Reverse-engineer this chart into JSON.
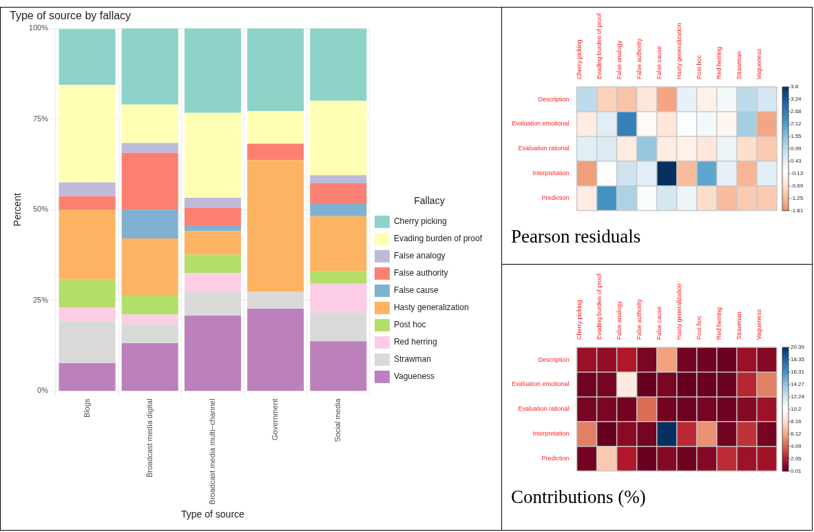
{
  "chart_data": [
    {
      "type": "bar",
      "title": "Type of source by fallacy",
      "xlabel": "Type of source",
      "ylabel": "Percent",
      "legend_title": "Fallacy",
      "legend": "right",
      "stacked": true,
      "grid": true,
      "categories": [
        "Blogs",
        "Broadcast media digital",
        "Broadcast media multi−channel",
        "Government",
        "Social media"
      ],
      "ylim": [
        0,
        100
      ],
      "yticks": [
        {
          "value": 0,
          "label": "0%"
        },
        {
          "value": 25,
          "label": "25%"
        },
        {
          "value": 50,
          "label": "50%"
        },
        {
          "value": 75,
          "label": "75%"
        },
        {
          "value": 100,
          "label": "100%"
        }
      ],
      "series": [
        {
          "name": "Vagueness",
          "color": "#bc80bd",
          "values": [
            7.7,
            13.2,
            20.8,
            22.7,
            13.7
          ]
        },
        {
          "name": "Strawman",
          "color": "#d9d9d9",
          "values": [
            11.5,
            5.2,
            6.5,
            4.6,
            8.0
          ]
        },
        {
          "name": "Red herring",
          "color": "#fccde5",
          "values": [
            3.8,
            2.7,
            5.2,
            0,
            7.9
          ]
        },
        {
          "name": "Post hoc",
          "color": "#b3de69",
          "values": [
            7.7,
            5.2,
            5.1,
            0,
            3.5
          ]
        },
        {
          "name": "Hasty generalization",
          "color": "#fdb462",
          "values": [
            19.2,
            15.8,
            6.5,
            36.4,
            15.1
          ]
        },
        {
          "name": "False cause",
          "color": "#80b1d3",
          "values": [
            0,
            7.9,
            1.4,
            0,
            3.4
          ]
        },
        {
          "name": "False authority",
          "color": "#fb8072",
          "values": [
            3.8,
            15.7,
            5.1,
            4.5,
            5.7
          ]
        },
        {
          "name": "False analogy",
          "color": "#bebada",
          "values": [
            3.8,
            2.7,
            2.7,
            0,
            2.2
          ]
        },
        {
          "name": "Evading burden of proof",
          "color": "#ffffb3",
          "values": [
            26.9,
            10.6,
            23.4,
            9.0,
            20.6
          ]
        },
        {
          "name": "Cherry picking",
          "color": "#8dd3c7",
          "values": [
            15.4,
            21.0,
            23.3,
            22.8,
            19.9
          ]
        }
      ]
    },
    {
      "type": "heatmap",
      "title": "Pearson residuals",
      "grid": true,
      "categories": [
        "Cherry picking",
        "Evading burden of proof",
        "False analogy",
        "False authority",
        "False cause",
        "Hasty generalization",
        "Post hoc",
        "Red herring",
        "Strawman",
        "Vagueness"
      ],
      "y_categories": [
        "Description",
        "Evaluation emotional",
        "Evaluation rational",
        "Interpretation",
        "Prediction"
      ],
      "cells": [
        [
          1.0,
          -0.9,
          -1.1,
          -0.5,
          -1.5,
          0.4,
          -0.3,
          0.2,
          1.0,
          0.7
        ],
        [
          -0.4,
          0.5,
          2.6,
          -0.1,
          -0.5,
          0.05,
          0.2,
          -0.2,
          1.3,
          -1.5
        ],
        [
          0.5,
          0.6,
          -0.4,
          1.5,
          -0.4,
          -0.3,
          -0.5,
          0.3,
          -0.7,
          -1.0
        ],
        [
          -1.6,
          0.02,
          0.8,
          0.5,
          3.8,
          -1.2,
          2.0,
          0.4,
          -1.3,
          0.5
        ],
        [
          -0.4,
          2.3,
          1.2,
          0.1,
          0.7,
          0.3,
          -0.7,
          -1.2,
          -1.0,
          -1.0
        ]
      ],
      "clim": [
        -1.81,
        3.8
      ],
      "cticks": [
        3.8,
        3.24,
        2.68,
        2.12,
        1.55,
        0.99,
        0.43,
        -0.13,
        -0.69,
        -1.25,
        -1.81
      ]
    },
    {
      "type": "heatmap",
      "title": "Contributions (%)",
      "grid": true,
      "categories": [
        "Cherry picking",
        "Evading burden of proof",
        "False analogy",
        "False authority",
        "False cause",
        "Hasty generalization",
        "Post hoc",
        "Red herring",
        "Strawman",
        "Vagueness"
      ],
      "y_categories": [
        "Description",
        "Evaluation emotional",
        "Evaluation rational",
        "Interpretation",
        "Prediction"
      ],
      "cells": [
        [
          1.4,
          1.2,
          2.0,
          0.5,
          6.0,
          0.3,
          0.2,
          0.1,
          1.4,
          0.8
        ],
        [
          0.3,
          0.4,
          9.0,
          0.02,
          0.5,
          0.01,
          0.1,
          0.1,
          2.4,
          5.0
        ],
        [
          0.4,
          0.5,
          0.3,
          4.5,
          0.3,
          0.2,
          0.4,
          0.2,
          0.8,
          1.5
        ],
        [
          5.0,
          0.01,
          0.9,
          0.4,
          20.39,
          2.5,
          5.5,
          0.3,
          2.8,
          0.4
        ],
        [
          0.3,
          7.5,
          2.0,
          0.02,
          0.8,
          0.2,
          0.8,
          2.6,
          1.5,
          1.6
        ]
      ],
      "clim": [
        0.01,
        20.39
      ],
      "cticks": [
        20.39,
        18.35,
        16.31,
        14.27,
        12.24,
        10.2,
        8.16,
        6.12,
        4.09,
        2.05,
        0.01
      ]
    }
  ]
}
